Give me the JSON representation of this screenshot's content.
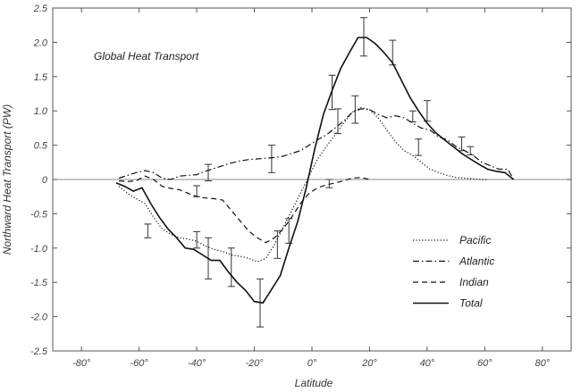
{
  "chart_data": {
    "type": "line",
    "title": "Global Heat Transport",
    "xlabel": "Latitude",
    "ylabel": "Northward Heat Transport (PW)",
    "xlim": [
      -90,
      90
    ],
    "ylim": [
      -2.5,
      2.5
    ],
    "x_ticks": [
      {
        "value": -80,
        "label": "-80°"
      },
      {
        "value": -60,
        "label": "-60°"
      },
      {
        "value": -40,
        "label": "-40°"
      },
      {
        "value": -20,
        "label": "-20°"
      },
      {
        "value": 0,
        "label": "0°"
      },
      {
        "value": 20,
        "label": "20°"
      },
      {
        "value": 40,
        "label": "40°"
      },
      {
        "value": 60,
        "label": "60°"
      },
      {
        "value": 80,
        "label": "80°"
      }
    ],
    "y_ticks": [
      {
        "value": 2.5,
        "label": "2.5"
      },
      {
        "value": 2.0,
        "label": "2.0"
      },
      {
        "value": 1.5,
        "label": "1.5"
      },
      {
        "value": 1.0,
        "label": "1.0"
      },
      {
        "value": 0.5,
        "label": "0.5"
      },
      {
        "value": 0,
        "label": "0"
      },
      {
        "value": -0.5,
        "label": "-0.5"
      },
      {
        "value": -1.0,
        "label": "-1.0"
      },
      {
        "value": -1.5,
        "label": "-1.5"
      },
      {
        "value": -2.0,
        "label": "-2.0"
      },
      {
        "value": -2.5,
        "label": "-2.5"
      }
    ],
    "zero_line": true,
    "legend_position": "bottom-right",
    "series": [
      {
        "name": "Pacific",
        "style": "dotted",
        "x": [
          -67,
          -64,
          -61,
          -58,
          -55,
          -52,
          -49,
          -46,
          -43,
          -40,
          -37,
          -34,
          -31,
          -28,
          -25,
          -22,
          -19,
          -16,
          -13,
          -10,
          -7,
          -4,
          -1,
          2,
          5,
          8,
          11,
          14,
          17,
          20,
          23,
          26,
          29,
          32,
          35,
          38,
          41,
          44,
          47,
          50,
          53,
          56,
          59,
          61
        ],
        "y": [
          -0.1,
          -0.2,
          -0.28,
          -0.35,
          -0.55,
          -0.72,
          -0.8,
          -0.85,
          -0.87,
          -0.9,
          -0.97,
          -1.02,
          -1.05,
          -1.1,
          -1.12,
          -1.15,
          -1.2,
          -1.15,
          -0.95,
          -0.7,
          -0.45,
          -0.2,
          0.05,
          0.3,
          0.48,
          0.65,
          0.82,
          0.98,
          1.05,
          1.02,
          0.9,
          0.72,
          0.55,
          0.42,
          0.35,
          0.25,
          0.15,
          0.1,
          0.06,
          0.03,
          0.02,
          0.01,
          0.0,
          0.0
        ]
      },
      {
        "name": "Atlantic",
        "style": "dash-dot",
        "x": [
          -67,
          -64,
          -61,
          -58,
          -55,
          -52,
          -49,
          -46,
          -43,
          -40,
          -37,
          -34,
          -31,
          -28,
          -25,
          -22,
          -19,
          -16,
          -13,
          -10,
          -7,
          -4,
          -1,
          2,
          5,
          8,
          11,
          14,
          17,
          20,
          23,
          26,
          29,
          32,
          35,
          38,
          41,
          44,
          47,
          50,
          53,
          56,
          59,
          62,
          65,
          68,
          70
        ],
        "y": [
          0.02,
          0.06,
          0.1,
          0.13,
          0.1,
          0.02,
          0.0,
          0.05,
          0.06,
          0.07,
          0.12,
          0.16,
          0.2,
          0.24,
          0.27,
          0.29,
          0.3,
          0.31,
          0.32,
          0.34,
          0.38,
          0.42,
          0.5,
          0.58,
          0.65,
          0.75,
          0.85,
          0.98,
          1.03,
          1.02,
          0.95,
          0.9,
          0.93,
          0.9,
          0.82,
          0.75,
          0.72,
          0.62,
          0.58,
          0.48,
          0.42,
          0.35,
          0.25,
          0.2,
          0.15,
          0.15,
          0.0
        ]
      },
      {
        "name": "Indian",
        "style": "dashed",
        "x": [
          -67,
          -64,
          -61,
          -58,
          -55,
          -52,
          -49,
          -46,
          -43,
          -40,
          -37,
          -34,
          -31,
          -28,
          -25,
          -22,
          -19,
          -16,
          -13,
          -10,
          -7,
          -4,
          -1,
          2,
          5,
          8,
          11,
          14,
          17,
          20
        ],
        "y": [
          -0.02,
          -0.03,
          -0.02,
          0.05,
          0.0,
          -0.1,
          -0.13,
          -0.15,
          -0.2,
          -0.25,
          -0.27,
          -0.28,
          -0.3,
          -0.45,
          -0.6,
          -0.75,
          -0.85,
          -0.92,
          -0.85,
          -0.72,
          -0.55,
          -0.35,
          -0.2,
          -0.12,
          -0.08,
          -0.05,
          -0.02,
          0.02,
          0.03,
          0.0
        ]
      },
      {
        "name": "Total",
        "style": "solid",
        "x": [
          -68,
          -65,
          -62,
          -59,
          -56,
          -53,
          -50,
          -47,
          -44,
          -41,
          -38,
          -35,
          -32,
          -29,
          -26,
          -23,
          -20,
          -17,
          -14,
          -11,
          -8,
          -5,
          -2,
          1,
          4,
          7,
          10,
          13,
          16,
          19,
          22,
          25,
          28,
          31,
          34,
          37,
          40,
          43,
          46,
          49,
          52,
          55,
          58,
          61,
          64,
          67,
          70
        ],
        "y": [
          -0.05,
          -0.1,
          -0.17,
          -0.12,
          -0.35,
          -0.55,
          -0.72,
          -0.85,
          -1.0,
          -1.02,
          -1.1,
          -1.18,
          -1.18,
          -1.35,
          -1.5,
          -1.62,
          -1.78,
          -1.8,
          -1.6,
          -1.4,
          -1.0,
          -0.62,
          -0.12,
          0.45,
          0.95,
          1.3,
          1.62,
          1.85,
          2.07,
          2.07,
          1.98,
          1.85,
          1.7,
          1.45,
          1.2,
          1.0,
          0.82,
          0.68,
          0.58,
          0.48,
          0.38,
          0.3,
          0.22,
          0.15,
          0.12,
          0.1,
          0.0
        ]
      }
    ],
    "error_bars": [
      {
        "x": -57,
        "y": -0.75,
        "err": 0.1
      },
      {
        "x": -40,
        "y": -0.88,
        "err": 0.12
      },
      {
        "x": -36,
        "y": -1.15,
        "err": 0.3
      },
      {
        "x": -28,
        "y": -1.28,
        "err": 0.28
      },
      {
        "x": -18,
        "y": -1.8,
        "err": 0.35
      },
      {
        "x": -12,
        "y": -0.95,
        "err": 0.2
      },
      {
        "x": -8,
        "y": -0.75,
        "err": 0.18
      },
      {
        "x": 7,
        "y": 1.27,
        "err": 0.25
      },
      {
        "x": 9,
        "y": 0.85,
        "err": 0.18
      },
      {
        "x": 15,
        "y": 1.02,
        "err": 0.2
      },
      {
        "x": 18,
        "y": 2.08,
        "err": 0.28
      },
      {
        "x": 28,
        "y": 1.85,
        "err": 0.18
      },
      {
        "x": 35,
        "y": 0.92,
        "err": 0.08
      },
      {
        "x": 37,
        "y": 0.47,
        "err": 0.12
      },
      {
        "x": 40,
        "y": 1.0,
        "err": 0.15
      },
      {
        "x": 52,
        "y": 0.52,
        "err": 0.1
      },
      {
        "x": 55,
        "y": 0.42,
        "err": 0.06
      },
      {
        "x": -14,
        "y": 0.3,
        "err": 0.2
      },
      {
        "x": -36,
        "y": 0.1,
        "err": 0.12
      },
      {
        "x": -40,
        "y": -0.17,
        "err": 0.08
      },
      {
        "x": 6,
        "y": -0.06,
        "err": 0.06
      }
    ]
  }
}
